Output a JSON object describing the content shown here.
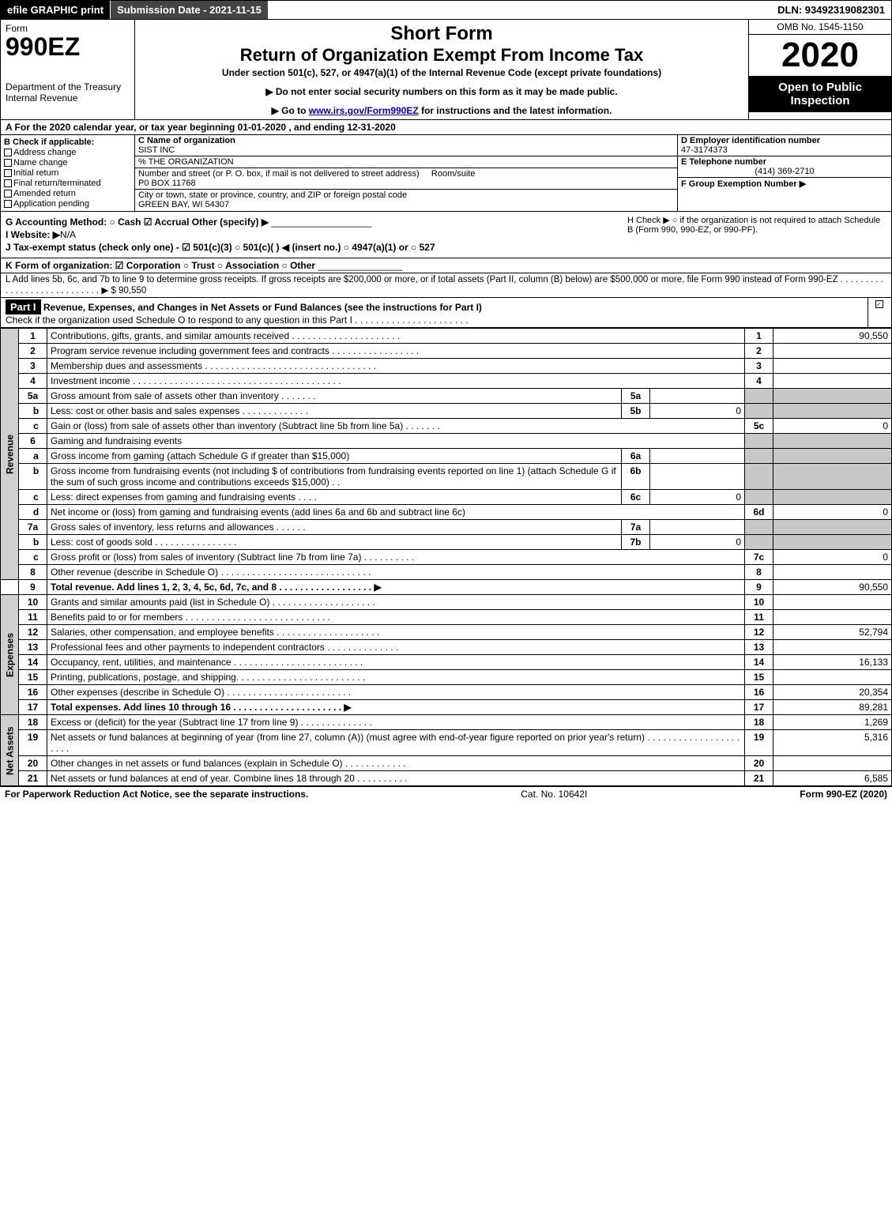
{
  "topbar": {
    "efile": "efile GRAPHIC print",
    "submission": "Submission Date - 2021-11-15",
    "dln": "DLN: 93492319082301"
  },
  "header": {
    "form": "Form",
    "formno": "990EZ",
    "dept": "Department of the Treasury\nInternal Revenue",
    "short": "Short Form",
    "title": "Return of Organization Exempt From Income Tax",
    "under": "Under section 501(c), 527, or 4947(a)(1) of the Internal Revenue Code (except private foundations)",
    "arrow1": "▶ Do not enter social security numbers on this form as it may be made public.",
    "arrow2_pre": "▶ Go to ",
    "arrow2_link": "www.irs.gov/Form990EZ",
    "arrow2_post": " for instructions and the latest information.",
    "omb": "OMB No. 1545-1150",
    "year": "2020",
    "open": "Open to Public Inspection"
  },
  "period": "A For the 2020 calendar year, or tax year beginning 01-01-2020 , and ending 12-31-2020",
  "sectionB": {
    "label": "B  Check if applicable:",
    "items": [
      "Address change",
      "Name change",
      "Initial return",
      "Final return/terminated",
      "Amended return",
      "Application pending"
    ]
  },
  "sectionC": {
    "name_label": "C Name of organization",
    "name": "SIST INC",
    "pct": "% THE ORGANIZATION",
    "street_label": "Number and street (or P. O. box, if mail is not delivered to street address)",
    "room": "Room/suite",
    "street": "P0 BOX 11768",
    "city_label": "City or town, state or province, country, and ZIP or foreign postal code",
    "city": "GREEN BAY, WI  54307"
  },
  "sectionD": {
    "ein_label": "D Employer identification number",
    "ein": "47-3174373",
    "tel_label": "E Telephone number",
    "tel": "(414) 369-2710",
    "group_label": "F Group Exemption Number   ▶"
  },
  "gh": {
    "g": "G Accounting Method:   ○ Cash   ☑ Accrual   Other (specify) ▶",
    "i": "I Website: ▶",
    "i_val": "N/A",
    "j": "J Tax-exempt status (check only one) - ☑ 501(c)(3) ○ 501(c)(  ) ◀ (insert no.) ○ 4947(a)(1) or ○ 527",
    "h": "H  Check ▶  ○  if the organization is not required to attach Schedule B (Form 990, 990-EZ, or 990-PF)."
  },
  "k": "K Form of organization:  ☑ Corporation  ○ Trust  ○ Association  ○ Other",
  "l": {
    "text": "L Add lines 5b, 6c, and 7b to line 9 to determine gross receipts. If gross receipts are $200,000 or more, or if total assets (Part II, column (B) below) are $500,000 or more, file Form 990 instead of Form 990-EZ  . . . . . . . . . . . . . . . . . . . . . . . . . . . . ▶",
    "val": "$ 90,550"
  },
  "part1": {
    "label": "Part I",
    "title": "Revenue, Expenses, and Changes in Net Assets or Fund Balances (see the instructions for Part I)",
    "check": "Check if the organization used Schedule O to respond to any question in this Part I . . . . . . . . . . . . . . . . . . . . . ."
  },
  "sidelabels": {
    "rev": "Revenue",
    "exp": "Expenses",
    "net": "Net Assets"
  },
  "rows": {
    "r1": {
      "n": "1",
      "d": "Contributions, gifts, grants, and similar amounts received . . . . . . . . . . . . . . . . . . . . .",
      "rn": "1",
      "rv": "90,550"
    },
    "r2": {
      "n": "2",
      "d": "Program service revenue including government fees and contracts . . . . . . . . . . . . . . . . .",
      "rn": "2",
      "rv": ""
    },
    "r3": {
      "n": "3",
      "d": "Membership dues and assessments . . . . . . . . . . . . . . . . . . . . . . . . . . . . . . . . .",
      "rn": "3",
      "rv": ""
    },
    "r4": {
      "n": "4",
      "d": "Investment income . . . . . . . . . . . . . . . . . . . . . . . . . . . . . . . . . . . . . . . .",
      "rn": "4",
      "rv": ""
    },
    "r5a": {
      "n": "5a",
      "d": "Gross amount from sale of assets other than inventory . . . . . . .",
      "in": "5a",
      "iv": ""
    },
    "r5b": {
      "n": "b",
      "d": "Less: cost or other basis and sales expenses . . . . . . . . . . . . .",
      "in": "5b",
      "iv": "0"
    },
    "r5c": {
      "n": "c",
      "d": "Gain or (loss) from sale of assets other than inventory (Subtract line 5b from line 5a) . . . . . . .",
      "rn": "5c",
      "rv": "0"
    },
    "r6": {
      "n": "6",
      "d": "Gaming and fundraising events"
    },
    "r6a": {
      "n": "a",
      "d": "Gross income from gaming (attach Schedule G if greater than $15,000)",
      "in": "6a",
      "iv": ""
    },
    "r6b": {
      "n": "b",
      "d": "Gross income from fundraising events (not including $                      of contributions from fundraising events reported on line 1) (attach Schedule G if the sum of such gross income and contributions exceeds $15,000)   . .",
      "in": "6b",
      "iv": ""
    },
    "r6c": {
      "n": "c",
      "d": "Less: direct expenses from gaming and fundraising events    . . . .",
      "in": "6c",
      "iv": "0"
    },
    "r6d": {
      "n": "d",
      "d": "Net income or (loss) from gaming and fundraising events (add lines 6a and 6b and subtract line 6c)",
      "rn": "6d",
      "rv": "0"
    },
    "r7a": {
      "n": "7a",
      "d": "Gross sales of inventory, less returns and allowances . . . . . .",
      "in": "7a",
      "iv": ""
    },
    "r7b": {
      "n": "b",
      "d": "Less: cost of goods sold          . . . . . . . . . . . . . . . .",
      "in": "7b",
      "iv": "0"
    },
    "r7c": {
      "n": "c",
      "d": "Gross profit or (loss) from sales of inventory (Subtract line 7b from line 7a) . . . . . . . . . .",
      "rn": "7c",
      "rv": "0"
    },
    "r8": {
      "n": "8",
      "d": "Other revenue (describe in Schedule O) . . . . . . . . . . . . . . . . . . . . . . . . . . . . .",
      "rn": "8",
      "rv": ""
    },
    "r9": {
      "n": "9",
      "d": "Total revenue. Add lines 1, 2, 3, 4, 5c, 6d, 7c, and 8  . . . . . . . . . . . . . . . . . .   ▶",
      "rn": "9",
      "rv": "90,550"
    },
    "r10": {
      "n": "10",
      "d": "Grants and similar amounts paid (list in Schedule O) . . . . . . . . . . . . . . . . . . . .",
      "rn": "10",
      "rv": ""
    },
    "r11": {
      "n": "11",
      "d": "Benefits paid to or for members      . . . . . . . . . . . . . . . . . . . . . . . . . . . .",
      "rn": "11",
      "rv": ""
    },
    "r12": {
      "n": "12",
      "d": "Salaries, other compensation, and employee benefits . . . . . . . . . . . . . . . . . . . .",
      "rn": "12",
      "rv": "52,794"
    },
    "r13": {
      "n": "13",
      "d": "Professional fees and other payments to independent contractors . . . . . . . . . . . . . .",
      "rn": "13",
      "rv": ""
    },
    "r14": {
      "n": "14",
      "d": "Occupancy, rent, utilities, and maintenance . . . . . . . . . . . . . . . . . . . . . . . . .",
      "rn": "14",
      "rv": "16,133"
    },
    "r15": {
      "n": "15",
      "d": "Printing, publications, postage, and shipping. . . . . . . . . . . . . . . . . . . . . . . . .",
      "rn": "15",
      "rv": ""
    },
    "r16": {
      "n": "16",
      "d": "Other expenses (describe in Schedule O)     . . . . . . . . . . . . . . . . . . . . . . . .",
      "rn": "16",
      "rv": "20,354"
    },
    "r17": {
      "n": "17",
      "d": "Total expenses. Add lines 10 through 16     . . . . . . . . . . . . . . . . . . . . .    ▶",
      "rn": "17",
      "rv": "89,281"
    },
    "r18": {
      "n": "18",
      "d": "Excess or (deficit) for the year (Subtract line 17 from line 9)        . . . . . . . . . . . . . .",
      "rn": "18",
      "rv": "1,269"
    },
    "r19": {
      "n": "19",
      "d": "Net assets or fund balances at beginning of year (from line 27, column (A)) (must agree with end-of-year figure reported on prior year's return) . . . . . . . . . . . . . . . . . . . . . .",
      "rn": "19",
      "rv": "5,316"
    },
    "r20": {
      "n": "20",
      "d": "Other changes in net assets or fund balances (explain in Schedule O) . . . . . . . . . . . .",
      "rn": "20",
      "rv": ""
    },
    "r21": {
      "n": "21",
      "d": "Net assets or fund balances at end of year. Combine lines 18 through 20 . . . . . . . . . .",
      "rn": "21",
      "rv": "6,585"
    }
  },
  "footer": {
    "left": "For Paperwork Reduction Act Notice, see the separate instructions.",
    "mid": "Cat. No. 10642I",
    "right": "Form 990-EZ (2020)"
  },
  "colors": {
    "black": "#000000",
    "gray": "#c8c8c8",
    "link": "#0000cc"
  }
}
